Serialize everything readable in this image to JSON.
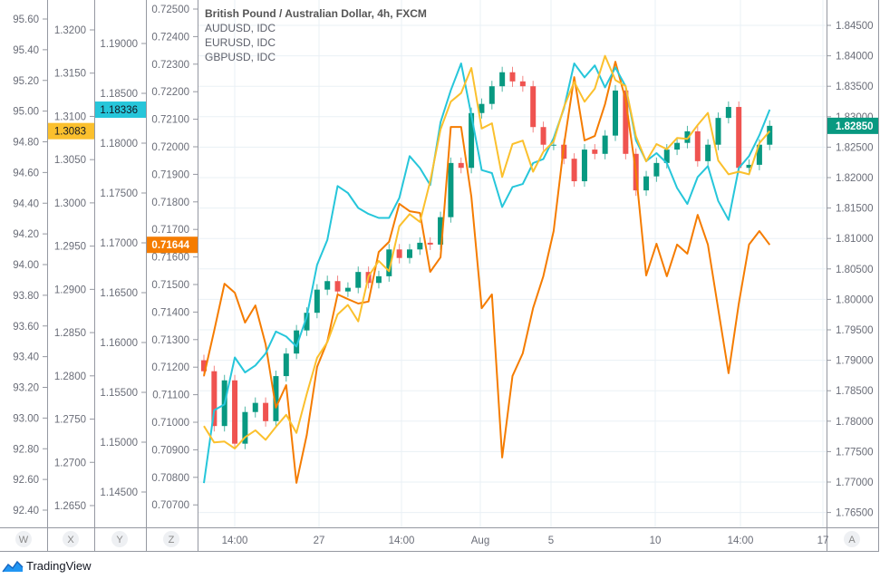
{
  "legend": {
    "main": "British Pound / Australian Dollar, 4h, FXCM",
    "overlays": [
      "AUDUSD, IDC",
      "EURUSD, IDC",
      "GBPUSD, IDC"
    ]
  },
  "brand": {
    "name": "TradingView",
    "icon": "tradingview-cloud-icon",
    "color": "#2196f3"
  },
  "axis_buttons": [
    "W",
    "X",
    "Y",
    "Z",
    "A"
  ],
  "colors": {
    "up": "#089981",
    "down": "#ef5350",
    "AUDUSD": "#f57c00",
    "EURUSD": "#26c6da",
    "GBPUSD": "#fbc02d",
    "grid": "#eaf0f5",
    "axis_text": "#6a6d78"
  },
  "chart_data": {
    "type": "candlestick",
    "grid": true,
    "legend_placement": "top-left",
    "x_tick_labels": [
      "14:00",
      "27",
      "14:00",
      "Aug",
      "5",
      "10",
      "14:00",
      "17"
    ],
    "axes": {
      "W": {
        "ticks": [
          "95.60",
          "95.40",
          "95.20",
          "95.00",
          "94.80",
          "94.60",
          "94.40",
          "94.20",
          "94.00",
          "93.80",
          "93.60",
          "93.40",
          "93.20",
          "93.00",
          "92.80",
          "92.60",
          "92.40"
        ]
      },
      "X": {
        "ticks": [
          "1.3200",
          "1.3150",
          "1.3100",
          "1.3050",
          "1.3000",
          "1.2950",
          "1.2900",
          "1.2850",
          "1.2800",
          "1.2750",
          "1.2700",
          "1.2650"
        ],
        "last": "1.3083"
      },
      "Y": {
        "ticks": [
          "1.19000",
          "1.18500",
          "1.18000",
          "1.17500",
          "1.17000",
          "1.16500",
          "1.16000",
          "1.15500",
          "1.15000",
          "1.14500"
        ],
        "last": "1.18336"
      },
      "Z": {
        "ticks": [
          "0.72500",
          "0.72400",
          "0.72300",
          "0.72200",
          "0.72100",
          "0.72000",
          "0.71900",
          "0.71800",
          "0.71700",
          "0.71600",
          "0.71500",
          "0.71400",
          "0.71300",
          "0.71200",
          "0.71100",
          "0.71000",
          "0.70900",
          "0.70800",
          "0.70700"
        ],
        "last": "0.71644"
      },
      "A": {
        "ticks": [
          "1.84500",
          "1.84000",
          "1.83500",
          "1.83000",
          "1.82500",
          "1.82000",
          "1.81500",
          "1.81000",
          "1.80500",
          "1.80000",
          "1.79500",
          "1.79000",
          "1.78500",
          "1.78000",
          "1.77500",
          "1.77000",
          "1.76500"
        ],
        "last": "1.82850"
      }
    },
    "series": [
      {
        "name": "British Pound / Australian Dollar, 4h, FXCM",
        "kind": "candlestick",
        "axis": "A",
        "open_first": 1.79,
        "close": [
          1.7882,
          1.7792,
          1.7867,
          1.7763,
          1.7815,
          1.783,
          1.78,
          1.7874,
          1.7911,
          1.7949,
          1.7978,
          1.8016,
          1.803,
          1.8013,
          1.8019,
          1.8045,
          1.8027,
          1.8038,
          1.8082,
          1.8068,
          1.8082,
          1.8093,
          1.809,
          1.8135,
          1.8224,
          1.8216,
          1.8306,
          1.8321,
          1.835,
          1.8373,
          1.8358,
          1.835,
          1.8283,
          1.8254,
          1.8254,
          1.8231,
          1.8194,
          1.8246,
          1.8239,
          1.8269,
          1.8343,
          1.8239,
          1.8179,
          1.8202,
          1.8224,
          1.8246,
          1.8257,
          1.8276,
          1.8227,
          1.8254,
          1.8298,
          1.8316,
          1.8216,
          1.8221,
          1.8254,
          1.8285
        ]
      },
      {
        "name": "AUDUSD, IDC",
        "kind": "line",
        "axis": "Z",
        "color": "#f57c00",
        "values": [
          0.71168,
          0.71332,
          0.71503,
          0.7147,
          0.71362,
          0.71424,
          0.71283,
          0.71053,
          0.71135,
          0.7078,
          0.70954,
          0.71201,
          0.71293,
          0.71464,
          0.71447,
          0.71431,
          0.71438,
          0.71618,
          0.71655,
          0.71793,
          0.71766,
          0.7176,
          0.71546,
          0.71599,
          0.72072,
          0.72072,
          0.71819,
          0.71414,
          0.71464,
          0.70872,
          0.71168,
          0.7125,
          0.71414,
          0.7153,
          0.71694,
          0.72007,
          0.72253,
          0.72023,
          0.72039,
          0.72155,
          0.72309,
          0.72171,
          0.71908,
          0.71533,
          0.71648,
          0.7153,
          0.71645,
          0.71612,
          0.71753,
          0.71645,
          0.71411,
          0.71178,
          0.71431,
          0.71645,
          0.71694,
          0.71644
        ]
      },
      {
        "name": "EURUSD, IDC",
        "kind": "line",
        "axis": "Y",
        "color": "#26c6da",
        "values": [
          1.1459,
          1.1532,
          1.1538,
          1.1585,
          1.157,
          1.1577,
          1.1589,
          1.1611,
          1.1606,
          1.1596,
          1.1626,
          1.1678,
          1.1703,
          1.1757,
          1.175,
          1.1735,
          1.1729,
          1.1725,
          1.1725,
          1.1745,
          1.1787,
          1.1775,
          1.1758,
          1.1821,
          1.1853,
          1.188,
          1.1828,
          1.1773,
          1.177,
          1.1736,
          1.1756,
          1.1759,
          1.178,
          1.1784,
          1.1805,
          1.1835,
          1.188,
          1.1866,
          1.1878,
          1.1856,
          1.1876,
          1.1857,
          1.1803,
          1.1782,
          1.179,
          1.178,
          1.1755,
          1.1739,
          1.1766,
          1.1777,
          1.1742,
          1.1723,
          1.1775,
          1.1787,
          1.1808,
          1.18336
        ]
      },
      {
        "name": "GBPUSD, IDC",
        "kind": "line",
        "axis": "X",
        "color": "#fbc02d",
        "values": [
          1.2742,
          1.2723,
          1.2724,
          1.2716,
          1.2729,
          1.2737,
          1.2726,
          1.2741,
          1.2755,
          1.2734,
          1.2779,
          1.2821,
          1.2839,
          1.2871,
          1.2882,
          1.2863,
          1.2915,
          1.2933,
          1.2921,
          1.2973,
          1.2987,
          1.2978,
          1.3025,
          1.3085,
          1.3117,
          1.3127,
          1.3156,
          1.3086,
          1.3092,
          1.303,
          1.3068,
          1.3072,
          1.3036,
          1.3059,
          1.3071,
          1.3111,
          1.314,
          1.3117,
          1.3132,
          1.317,
          1.3142,
          1.3135,
          1.3077,
          1.3048,
          1.3068,
          1.3062,
          1.3075,
          1.3074,
          1.309,
          1.3104,
          1.3049,
          1.3033,
          1.3036,
          1.3033,
          1.3069,
          1.3083
        ]
      }
    ]
  }
}
